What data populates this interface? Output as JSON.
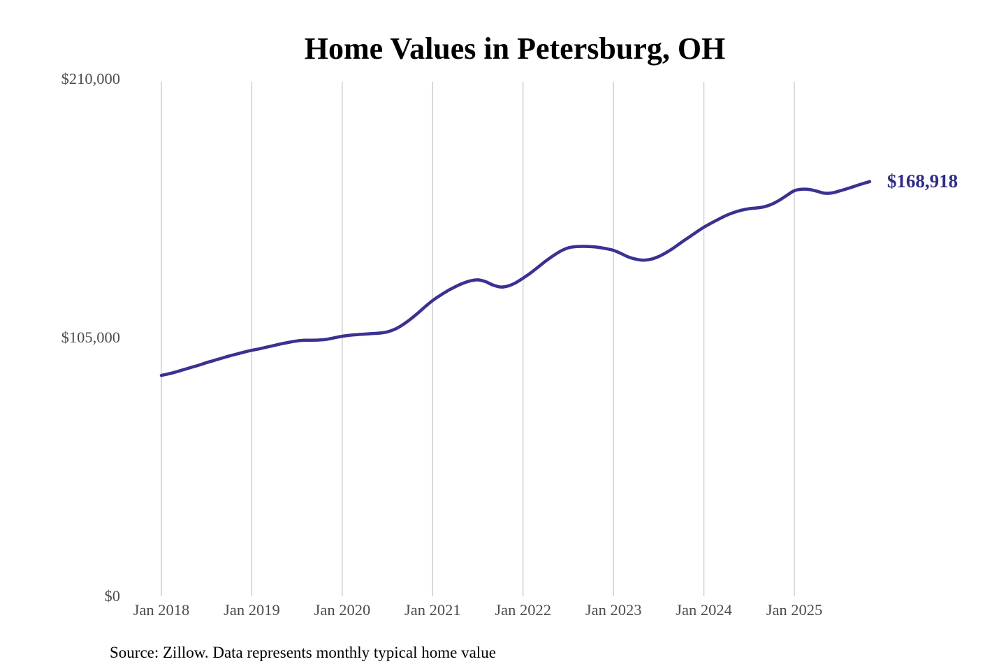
{
  "title": "Home Values in Petersburg, OH",
  "source_note": "Source: Zillow. Data represents monthly typical home value",
  "colors": {
    "line": "#3a3191",
    "annotation_text": "#2e2b85",
    "grid": "#c9c9c9",
    "tick_label": "#4d4d4d",
    "title_text": "#1a1a1a",
    "source_text": "#333333",
    "background": "#ffffff"
  },
  "chart_data": {
    "type": "line",
    "title": "Home Values in Petersburg, OH",
    "xlabel": "",
    "ylabel": "",
    "ylim": [
      0,
      210000
    ],
    "y_ticks": [
      0,
      105000,
      210000
    ],
    "y_tick_labels": [
      "$0",
      "$105,000",
      "$210,000"
    ],
    "x_tick_labels": [
      "Jan 2018",
      "Jan 2019",
      "Jan 2020",
      "Jan 2021",
      "Jan 2022",
      "Jan 2023",
      "Jan 2024",
      "Jan 2025"
    ],
    "x_range": {
      "start": "Jan 2018",
      "end": "Nov 2025",
      "step": "month"
    },
    "grid": "vertical-only",
    "legend": "none",
    "final_value_label": "$168,918",
    "final_value": 168918,
    "series": [
      {
        "name": "Monthly typical home value",
        "values": [
          90200,
          90900,
          91700,
          92600,
          93500,
          94400,
          95400,
          96300,
          97200,
          98100,
          98900,
          99700,
          100400,
          101000,
          101700,
          102400,
          103100,
          103700,
          104200,
          104500,
          104500,
          104600,
          104900,
          105500,
          106100,
          106500,
          106800,
          107000,
          107200,
          107400,
          107900,
          109000,
          110700,
          112900,
          115400,
          118100,
          120600,
          122700,
          124600,
          126200,
          127600,
          128600,
          129000,
          128300,
          126900,
          126100,
          126500,
          127800,
          129700,
          131800,
          134200,
          136600,
          138800,
          140700,
          142000,
          142500,
          142600,
          142500,
          142200,
          141700,
          141000,
          139700,
          138300,
          137400,
          137000,
          137400,
          138500,
          140100,
          142000,
          144200,
          146300,
          148400,
          150400,
          152100,
          153700,
          155200,
          156400,
          157300,
          157900,
          158200,
          158700,
          159700,
          161300,
          163300,
          165200,
          165800,
          165700,
          165000,
          164200,
          164300,
          165100,
          166000,
          167000,
          168000,
          168918
        ]
      }
    ]
  }
}
